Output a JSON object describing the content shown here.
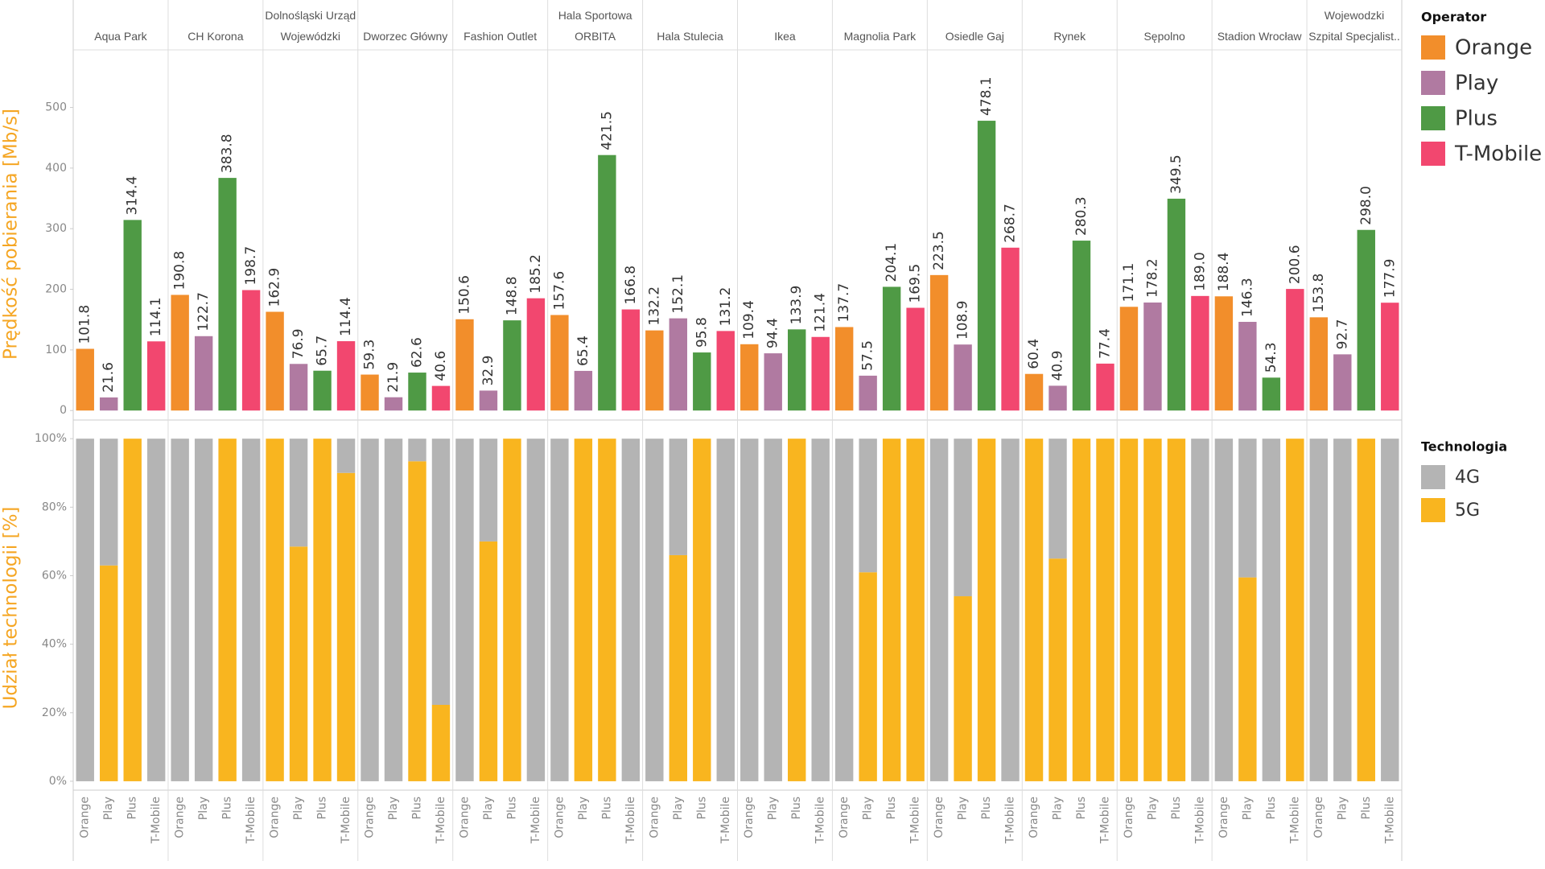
{
  "chart_data": [
    {
      "type": "bar",
      "y_label": "Prędkość pobierania [Mb/s]",
      "legend_title": "Operator",
      "categories": [
        "Aqua Park",
        "CH Korona",
        "Dolnośląski Urząd Wojewódzki",
        "Dworzec Główny",
        "Fashion Outlet",
        "Hala Sportowa ORBITA",
        "Hala Stulecia",
        "Ikea",
        "Magnolia Park",
        "Osiedle Gaj",
        "Rynek",
        "Sępolno",
        "Stadion Wrocław",
        "Wojewodzki Szpital Specjalist.."
      ],
      "series": [
        {
          "name": "Orange",
          "color": "#f28e2b",
          "values": [
            101.8,
            190.8,
            162.9,
            59.3,
            150.6,
            157.6,
            132.2,
            109.4,
            137.7,
            223.5,
            60.4,
            171.1,
            188.4,
            153.8
          ],
          "value_labels": [
            "101.8",
            "190.8",
            "162.9",
            "59.3",
            "150.6",
            "157.6",
            "132.2",
            "109.4",
            "137.7",
            "223.5",
            "60.4",
            "171.1",
            "188.4",
            "153.8"
          ]
        },
        {
          "name": "Play",
          "color": "#b07aa1",
          "values": [
            21.6,
            122.7,
            76.9,
            21.9,
            32.9,
            65.4,
            152.1,
            94.4,
            57.5,
            108.9,
            40.9,
            178.2,
            146.3,
            92.7
          ],
          "value_labels": [
            "21.6",
            "122.7",
            "76.9",
            "21.9",
            "32.9",
            "65.4",
            "152.1",
            "94.4",
            "57.5",
            "108.9",
            "40.9",
            "178.2",
            "146.3",
            "92.7"
          ]
        },
        {
          "name": "Plus",
          "color": "#4f9a45",
          "values": [
            314.4,
            383.8,
            65.7,
            62.6,
            148.8,
            421.5,
            95.8,
            133.9,
            204.1,
            478.1,
            280.3,
            349.5,
            54.3,
            298.0
          ],
          "value_labels": [
            "314.4",
            "383.8",
            "65.7",
            "62.6",
            "148.8",
            "421.5",
            "95.8",
            "133.9",
            "204.1",
            "478.1",
            "280.3",
            "349.5",
            "54.3",
            "298.0"
          ]
        },
        {
          "name": "T-Mobile",
          "color": "#f2476f",
          "values": [
            114.1,
            198.7,
            114.4,
            40.6,
            185.2,
            166.8,
            131.2,
            121.4,
            169.5,
            268.7,
            77.4,
            189.0,
            200.6,
            177.9
          ],
          "value_labels": [
            "114.1",
            "198.7",
            "114.4",
            "40.6",
            "185.2",
            "166.8",
            "131.2",
            "121.4",
            "169.5",
            "268.7",
            "77.4",
            "189.0",
            "200.6",
            "177.9"
          ]
        }
      ],
      "ylim": [
        -13,
        595
      ],
      "yticks": [
        0,
        100,
        200,
        300,
        400,
        500
      ],
      "grid": false
    },
    {
      "type": "stacked_bar",
      "y_label": "Udział technologii [%]",
      "legend_title": "Technologia",
      "categories": [
        "Orange",
        "Play",
        "Plus",
        "T-Mobile",
        "Orange",
        "Play",
        "Plus",
        "T-Mobile",
        "Orange",
        "Play",
        "Plus",
        "T-Mobile",
        "Orange",
        "Play",
        "Plus",
        "T-Mobile",
        "Orange",
        "Play",
        "Plus",
        "T-Mobile",
        "Orange",
        "Play",
        "Plus",
        "T-Mobile",
        "Orange",
        "Play",
        "Plus",
        "T-Mobile",
        "Orange",
        "Play",
        "Plus",
        "T-Mobile",
        "Orange",
        "Play",
        "Plus",
        "T-Mobile",
        "Orange",
        "Play",
        "Plus",
        "T-Mobile",
        "Orange",
        "Play",
        "Plus",
        "T-Mobile",
        "Orange",
        "Play",
        "Plus",
        "T-Mobile",
        "Orange",
        "Play",
        "Plus",
        "T-Mobile",
        "Orange",
        "Play",
        "Plus",
        "T-Mobile"
      ],
      "series": [
        {
          "name": "5G",
          "color": "#f9b51f",
          "values": [
            0,
            63,
            100,
            0,
            0,
            0,
            100,
            0,
            100,
            68.5,
            100,
            90,
            0,
            0,
            93.4,
            22.3,
            0,
            70,
            100,
            0,
            0,
            100,
            100,
            0,
            0,
            66,
            100,
            0,
            0,
            0,
            100,
            0,
            0,
            61,
            100,
            100,
            0,
            54,
            100,
            0,
            100,
            65,
            100,
            100,
            100,
            100,
            100,
            0,
            0,
            59.5,
            0,
            100,
            0,
            0,
            100,
            0
          ]
        },
        {
          "name": "4G",
          "color": "#b4b4b4",
          "values": [
            100,
            37,
            0,
            100,
            100,
            100,
            0,
            100,
            0,
            31.5,
            0,
            10,
            100,
            100,
            6.6,
            77.7,
            100,
            30,
            0,
            100,
            100,
            0,
            0,
            100,
            100,
            34,
            0,
            100,
            100,
            100,
            0,
            100,
            100,
            39,
            0,
            0,
            100,
            46,
            0,
            100,
            0,
            35,
            0,
            0,
            0,
            0,
            0,
            100,
            100,
            40.5,
            100,
            0,
            100,
            100,
            0,
            100
          ]
        }
      ],
      "legend_order": [
        "4G",
        "5G"
      ],
      "ylim": [
        -2.6,
        103.8
      ],
      "yticks": [
        {
          "value": 0,
          "label": "0%"
        },
        {
          "value": 20,
          "label": "20%"
        },
        {
          "value": 40,
          "label": "40%"
        },
        {
          "value": 60,
          "label": "60%"
        },
        {
          "value": 80,
          "label": "80%"
        },
        {
          "value": 100,
          "label": "100%"
        }
      ],
      "grid": false
    }
  ]
}
